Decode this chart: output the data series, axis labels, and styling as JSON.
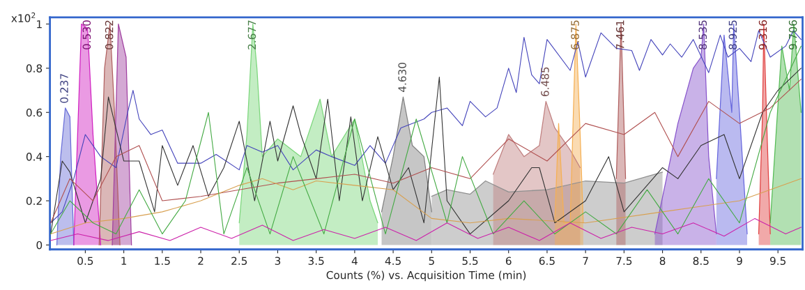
{
  "chart_data": {
    "type": "area",
    "xlabel": "Counts (%) vs. Acquisition Time (min)",
    "ylabel": "x10$^{2}$",
    "xlim": [
      0.04,
      9.82
    ],
    "ylim": [
      -0.02,
      1.03
    ],
    "xticks": [
      0.5,
      1,
      1.5,
      2,
      2.5,
      3,
      3.5,
      4,
      4.5,
      5,
      5.5,
      6,
      6.5,
      7,
      7.5,
      8,
      8.5,
      9,
      9.5
    ],
    "yticks": [
      0,
      0.2,
      0.4,
      0.6,
      0.8,
      1
    ],
    "grid": false,
    "legend": false,
    "series": [
      {
        "type": "line",
        "color": "#4444bb",
        "x": [
          0.05,
          0.2,
          0.35,
          0.5,
          0.7,
          0.9,
          1.05,
          1.12,
          1.2,
          1.35,
          1.5,
          1.7,
          2.0,
          2.2,
          2.5,
          2.6,
          2.8,
          3.0,
          3.2,
          3.5,
          3.7,
          4.0,
          4.2,
          4.4,
          4.6,
          4.9,
          5.0,
          5.2,
          5.4,
          5.5,
          5.7,
          5.85,
          6.0,
          6.1,
          6.2,
          6.3,
          6.4,
          6.5,
          6.8,
          6.9,
          7.0,
          7.2,
          7.4,
          7.6,
          7.7,
          7.85,
          8.0,
          8.1,
          8.25,
          8.4,
          8.6,
          8.75,
          8.85,
          9.0,
          9.15,
          9.25,
          9.4,
          9.6,
          9.7,
          9.8
        ],
        "values": [
          0.1,
          0.15,
          0.3,
          0.5,
          0.4,
          0.35,
          0.6,
          0.7,
          0.57,
          0.5,
          0.52,
          0.37,
          0.37,
          0.41,
          0.34,
          0.45,
          0.42,
          0.45,
          0.34,
          0.43,
          0.4,
          0.36,
          0.45,
          0.37,
          0.53,
          0.57,
          0.6,
          0.62,
          0.54,
          0.65,
          0.58,
          0.62,
          0.8,
          0.69,
          0.94,
          0.77,
          0.73,
          0.93,
          0.79,
          0.92,
          0.76,
          0.96,
          0.89,
          0.88,
          0.79,
          0.93,
          0.86,
          0.91,
          0.85,
          0.93,
          0.78,
          0.95,
          0.85,
          0.89,
          0.83,
          0.97,
          0.85,
          0.9,
          0.97,
          0.93
        ]
      },
      {
        "type": "line",
        "color": "#333333",
        "x": [
          0.05,
          0.2,
          0.3,
          0.5,
          0.7,
          0.8,
          1.0,
          1.2,
          1.4,
          1.5,
          1.7,
          1.9,
          2.1,
          2.3,
          2.5,
          2.7,
          2.9,
          3.0,
          3.2,
          3.3,
          3.5,
          3.65,
          3.8,
          3.95,
          4.1,
          4.3,
          4.5,
          4.7,
          4.9,
          5.1,
          5.2,
          5.5,
          6.0,
          6.3,
          6.4,
          6.6,
          7.0,
          7.3,
          7.5,
          8.0,
          8.2,
          8.5,
          8.8,
          9.0,
          9.3,
          9.5,
          9.8
        ],
        "values": [
          0.05,
          0.38,
          0.33,
          0.1,
          0.3,
          0.67,
          0.38,
          0.38,
          0.15,
          0.45,
          0.27,
          0.45,
          0.22,
          0.35,
          0.56,
          0.2,
          0.56,
          0.38,
          0.63,
          0.5,
          0.3,
          0.66,
          0.2,
          0.58,
          0.2,
          0.49,
          0.25,
          0.35,
          0.1,
          0.76,
          0.2,
          0.05,
          0.2,
          0.35,
          0.35,
          0.1,
          0.2,
          0.4,
          0.15,
          0.35,
          0.3,
          0.45,
          0.5,
          0.3,
          0.6,
          0.7,
          0.8
        ]
      },
      {
        "type": "line",
        "color": "#b05050",
        "x": [
          0.05,
          0.3,
          0.6,
          0.9,
          1.2,
          1.5,
          2.0,
          2.5,
          3.0,
          3.5,
          4.0,
          4.5,
          5.0,
          5.5,
          6.0,
          6.5,
          7.0,
          7.5,
          7.9,
          8.2,
          8.6,
          9.0,
          9.4,
          9.8
        ],
        "values": [
          0.1,
          0.3,
          0.2,
          0.4,
          0.45,
          0.2,
          0.22,
          0.25,
          0.28,
          0.3,
          0.32,
          0.28,
          0.35,
          0.3,
          0.48,
          0.38,
          0.55,
          0.5,
          0.6,
          0.4,
          0.65,
          0.55,
          0.62,
          0.75
        ]
      },
      {
        "type": "line",
        "color": "#d8a050",
        "x": [
          0.05,
          0.5,
          1.0,
          1.5,
          2.0,
          2.5,
          2.8,
          3.2,
          3.5,
          4.0,
          4.5,
          5.0,
          5.5,
          6.0,
          7.0,
          8.0,
          9.0,
          9.8
        ],
        "values": [
          0.05,
          0.1,
          0.12,
          0.15,
          0.2,
          0.27,
          0.3,
          0.25,
          0.29,
          0.27,
          0.25,
          0.12,
          0.1,
          0.12,
          0.1,
          0.15,
          0.2,
          0.3
        ]
      },
      {
        "type": "line",
        "color": "#44aa44",
        "x": [
          0.05,
          0.3,
          0.6,
          0.9,
          1.2,
          1.5,
          1.8,
          2.1,
          2.3,
          2.6,
          2.9,
          3.2,
          3.6,
          4.0,
          4.4,
          4.8,
          5.2,
          5.4,
          5.8,
          6.2,
          6.6,
          7.0,
          7.4,
          7.8,
          8.2,
          8.6,
          9.0,
          9.4,
          9.8
        ],
        "values": [
          0.05,
          0.2,
          0.1,
          0.05,
          0.25,
          0.05,
          0.2,
          0.6,
          0.05,
          0.35,
          0.05,
          0.4,
          0.05,
          0.57,
          0.05,
          0.57,
          0.1,
          0.4,
          0.05,
          0.2,
          0.05,
          0.15,
          0.05,
          0.25,
          0.05,
          0.3,
          0.1,
          0.6,
          0.9
        ]
      },
      {
        "type": "line",
        "color": "#cc22aa",
        "x": [
          0.05,
          0.4,
          0.8,
          1.2,
          1.6,
          2.0,
          2.4,
          2.8,
          3.2,
          3.6,
          4.0,
          4.4,
          4.8,
          5.2,
          5.6,
          6.0,
          6.4,
          6.8,
          7.2,
          7.6,
          8.0,
          8.4,
          8.8,
          9.2,
          9.6,
          9.8
        ],
        "values": [
          0.02,
          0.05,
          0.02,
          0.06,
          0.02,
          0.08,
          0.03,
          0.09,
          0.02,
          0.07,
          0.03,
          0.08,
          0.02,
          0.1,
          0.03,
          0.08,
          0.02,
          0.1,
          0.03,
          0.08,
          0.05,
          0.1,
          0.04,
          0.12,
          0.05,
          0.08
        ]
      },
      {
        "color": "#6a6fd8",
        "x": [
          0.13,
          0.18,
          0.24,
          0.3,
          0.35
        ],
        "values": [
          0,
          0.4,
          0.62,
          0.58,
          0
        ]
      },
      {
        "color": "#d020c0",
        "x": [
          0.35,
          0.45,
          0.53,
          0.6,
          0.7
        ],
        "values": [
          0,
          1.0,
          0.98,
          0.5,
          0
        ]
      },
      {
        "color": "#b06060",
        "x": [
          0.68,
          0.75,
          0.82,
          0.88,
          0.95
        ],
        "values": [
          0,
          0.8,
          1.0,
          0.6,
          0
        ]
      },
      {
        "color": "#a040a0",
        "x": [
          0.85,
          0.93,
          1.03,
          1.1
        ],
        "values": [
          0,
          1.0,
          0.85,
          0
        ]
      },
      {
        "color": "#7bd67b",
        "x": [
          2.5,
          2.6,
          2.677,
          2.73,
          2.8,
          3.0,
          3.3,
          3.55,
          3.7,
          4.0,
          4.2,
          4.3
        ],
        "values": [
          0.1,
          0.5,
          1.0,
          0.8,
          0.4,
          0.48,
          0.4,
          0.66,
          0.4,
          0.57,
          0.2,
          0.1
        ]
      },
      {
        "color": "#808080",
        "x": [
          4.35,
          4.5,
          4.63,
          4.75,
          4.9,
          5.0
        ],
        "values": [
          0.15,
          0.4,
          0.67,
          0.45,
          0.4,
          0.15
        ]
      },
      {
        "color": "#909090",
        "x": [
          5.0,
          5.2,
          5.5,
          5.7,
          6.0,
          6.5,
          7.0,
          7.5,
          7.8,
          8.0
        ],
        "values": [
          0.22,
          0.25,
          0.23,
          0.29,
          0.24,
          0.25,
          0.29,
          0.28,
          0.31,
          0.33
        ]
      },
      {
        "color": "#c08080",
        "x": [
          5.8,
          6.0,
          6.2,
          6.4,
          6.485,
          6.6,
          6.8,
          6.93
        ],
        "values": [
          0.32,
          0.5,
          0.4,
          0.45,
          0.65,
          0.53,
          0.43,
          0.35
        ]
      },
      {
        "color": "#f5b055",
        "x": [
          6.6,
          6.65,
          6.72,
          6.8,
          6.875,
          6.93,
          6.97
        ],
        "values": [
          0.1,
          0.55,
          0.1,
          0.1,
          1.0,
          0.5,
          0.1
        ]
      },
      {
        "color": "#b06060",
        "x": [
          7.4,
          7.461,
          7.52
        ],
        "values": [
          0.3,
          1.0,
          0.3
        ]
      },
      {
        "color": "#8855cc",
        "x": [
          7.9,
          8.2,
          8.4,
          8.5,
          8.535,
          8.6,
          8.7
        ],
        "values": [
          0.05,
          0.55,
          0.8,
          0.85,
          1.0,
          0.4,
          0.05
        ]
      },
      {
        "color": "#6666dd",
        "x": [
          8.7,
          8.8,
          8.9,
          8.925,
          9.0,
          9.1
        ],
        "values": [
          0.3,
          0.95,
          0.6,
          1.0,
          0.6,
          0.05
        ]
      },
      {
        "color": "#e04040",
        "x": [
          9.25,
          9.3,
          9.316,
          9.35,
          9.4
        ],
        "values": [
          0.05,
          0.6,
          1.0,
          0.6,
          0.05
        ]
      },
      {
        "color": "#55bb55",
        "x": [
          9.4,
          9.55,
          9.65,
          9.706,
          9.8
        ],
        "values": [
          0.1,
          0.9,
          0.7,
          1.0,
          0.6
        ]
      }
    ],
    "annotations": [
      {
        "text": "0.237",
        "x": 0.237,
        "y": 0.62
      },
      {
        "text": "0.530",
        "x": 0.53,
        "y": 0.98
      },
      {
        "text": "0.822",
        "x": 0.822,
        "y": 1.0
      },
      {
        "text": "2.677",
        "x": 2.677,
        "y": 1.0
      },
      {
        "text": "4.630",
        "x": 4.63,
        "y": 0.67
      },
      {
        "text": "6.485",
        "x": 6.485,
        "y": 0.65
      },
      {
        "text": "6.875",
        "x": 6.875,
        "y": 1.0
      },
      {
        "text": "7.461",
        "x": 7.461,
        "y": 1.0
      },
      {
        "text": "8.535",
        "x": 8.535,
        "y": 1.0
      },
      {
        "text": "8.925",
        "x": 8.925,
        "y": 1.0
      },
      {
        "text": "9.316",
        "x": 9.316,
        "y": 1.0
      },
      {
        "text": "9.706",
        "x": 9.706,
        "y": 1.0
      }
    ]
  }
}
